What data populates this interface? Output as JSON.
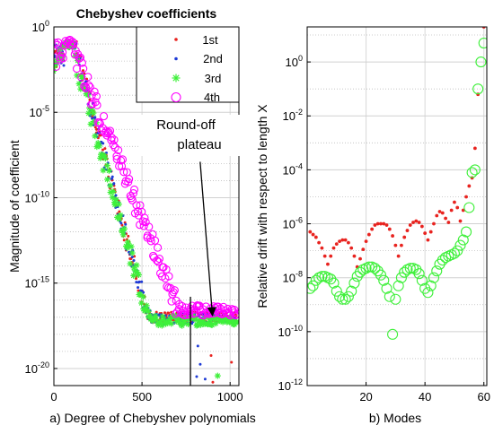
{
  "chart_data": [
    {
      "type": "scatter",
      "title": "Chebyshev coefficients",
      "xlabel": "",
      "ylabel": "Magnitude of coefficient",
      "caption": "a) Degree of Chebyshev polynomials",
      "xlim": [
        0,
        1050
      ],
      "ylim_log10": [
        -21,
        0
      ],
      "yscale": "log",
      "grid": true,
      "legend_position": "top-right",
      "x_ticks": [
        0,
        500,
        1000
      ],
      "y_tick_base": "10",
      "y_tick_exponents": [
        "0",
        "-5",
        "-10",
        "-15",
        "-20"
      ],
      "annotation": {
        "line1": "Round-off",
        "line2": "plateau",
        "arrow_tail": [
          830,
          -7.9
        ],
        "arrow_head": [
          900,
          -16.9
        ],
        "vline_x": 775
      },
      "series": [
        {
          "name": "1st",
          "marker": "dot",
          "color": "#e8231f",
          "plateau_log10": -17.0,
          "peak_x": 130,
          "peak_log10": -0.85,
          "decay_rate": 0.0385,
          "x_max": 1040
        },
        {
          "name": "2nd",
          "marker": "dot",
          "color": "#1f3bd6",
          "plateau_log10": -17.1,
          "peak_x": 125,
          "peak_log10": -0.9,
          "decay_rate": 0.0375,
          "x_max": 1040
        },
        {
          "name": "3rd",
          "marker": "asterisk",
          "color": "#3ef03a",
          "plateau_log10": -17.2,
          "peak_x": 110,
          "peak_log10": -0.8,
          "decay_rate": 0.0365,
          "x_max": 1040
        },
        {
          "name": "4th",
          "marker": "circle",
          "color": "#ff00ff",
          "plateau_log10": -16.6,
          "peak_x": 115,
          "peak_log10": -0.75,
          "decay_rate": 0.0255,
          "x_max": 1040
        }
      ]
    },
    {
      "type": "scatter",
      "title": "",
      "xlabel": "",
      "ylabel": "Relative drift with respect to length X",
      "caption": "b) Modes",
      "xlim": [
        0,
        61
      ],
      "ylim_log10": [
        -12,
        1.3
      ],
      "yscale": "log",
      "grid": true,
      "x_ticks": [
        20,
        40,
        60
      ],
      "y_tick_base": "10",
      "y_tick_exponents": [
        "0",
        "-2",
        "-4",
        "-6",
        "-8",
        "-10",
        "-12"
      ],
      "series": [
        {
          "name": "",
          "marker": "dot",
          "color": "#e8231f",
          "x": [
            1,
            2,
            3,
            4,
            5,
            6,
            7,
            8,
            9,
            10,
            11,
            12,
            13,
            14,
            15,
            16,
            17,
            18,
            19,
            20,
            21,
            22,
            23,
            24,
            25,
            26,
            27,
            28,
            29,
            30,
            31,
            32,
            33,
            34,
            35,
            36,
            37,
            38,
            39,
            40,
            41,
            42,
            43,
            44,
            45,
            46,
            47,
            48,
            49,
            50,
            51,
            52,
            53,
            54,
            55,
            56,
            57,
            58,
            59,
            60
          ],
          "log10_y": [
            -6.3,
            -6.4,
            -6.5,
            -6.7,
            -6.9,
            -7.2,
            -7.5,
            -7.2,
            -6.9,
            -6.75,
            -6.65,
            -6.6,
            -6.6,
            -6.7,
            -6.9,
            -7.2,
            -7.6,
            -7.3,
            -6.95,
            -6.65,
            -6.4,
            -6.2,
            -6.05,
            -6.0,
            -6.0,
            -6.0,
            -6.05,
            -6.2,
            -6.45,
            -6.8,
            -7.2,
            -6.8,
            -6.5,
            -6.25,
            -6.05,
            -5.95,
            -5.9,
            -5.95,
            -6.1,
            -6.35,
            -6.6,
            -6.3,
            -6.0,
            -5.7,
            -5.55,
            -5.6,
            -5.8,
            -5.95,
            -5.5,
            -5.2,
            -5.4,
            -5.9,
            -5.5,
            -5.0,
            -4.6,
            -4.3,
            -3.2,
            -1.2,
            1.6,
            1.3
          ]
        },
        {
          "name": "",
          "marker": "circle",
          "color": "#3ef03a",
          "x": [
            1,
            2,
            3,
            4,
            5,
            6,
            7,
            8,
            9,
            10,
            11,
            12,
            13,
            14,
            15,
            16,
            17,
            18,
            19,
            20,
            21,
            22,
            23,
            24,
            25,
            26,
            27,
            28,
            29,
            30,
            31,
            32,
            33,
            34,
            35,
            36,
            37,
            38,
            39,
            40,
            41,
            42,
            43,
            44,
            45,
            46,
            47,
            48,
            49,
            50,
            51,
            52,
            53,
            54,
            55,
            56,
            57,
            58,
            59,
            60
          ],
          "log10_y": [
            -8.4,
            -8.3,
            -8.1,
            -8.0,
            -7.95,
            -7.95,
            -8.0,
            -8.05,
            -8.2,
            -8.5,
            -8.7,
            -8.8,
            -8.8,
            -8.7,
            -8.5,
            -8.2,
            -7.95,
            -7.8,
            -7.7,
            -7.65,
            -7.6,
            -7.6,
            -7.65,
            -7.75,
            -7.9,
            -8.1,
            -8.4,
            -8.7,
            -10.1,
            -8.8,
            -8.3,
            -8.0,
            -7.8,
            -7.7,
            -7.65,
            -7.65,
            -7.7,
            -7.85,
            -8.1,
            -8.4,
            -8.55,
            -8.3,
            -8.0,
            -7.75,
            -7.5,
            -7.35,
            -7.25,
            -7.2,
            -7.15,
            -7.1,
            -7.0,
            -6.8,
            -6.6,
            -6.3,
            -5.4,
            -4.1,
            -4.0,
            -1.0,
            0.0,
            0.7
          ]
        }
      ]
    }
  ]
}
